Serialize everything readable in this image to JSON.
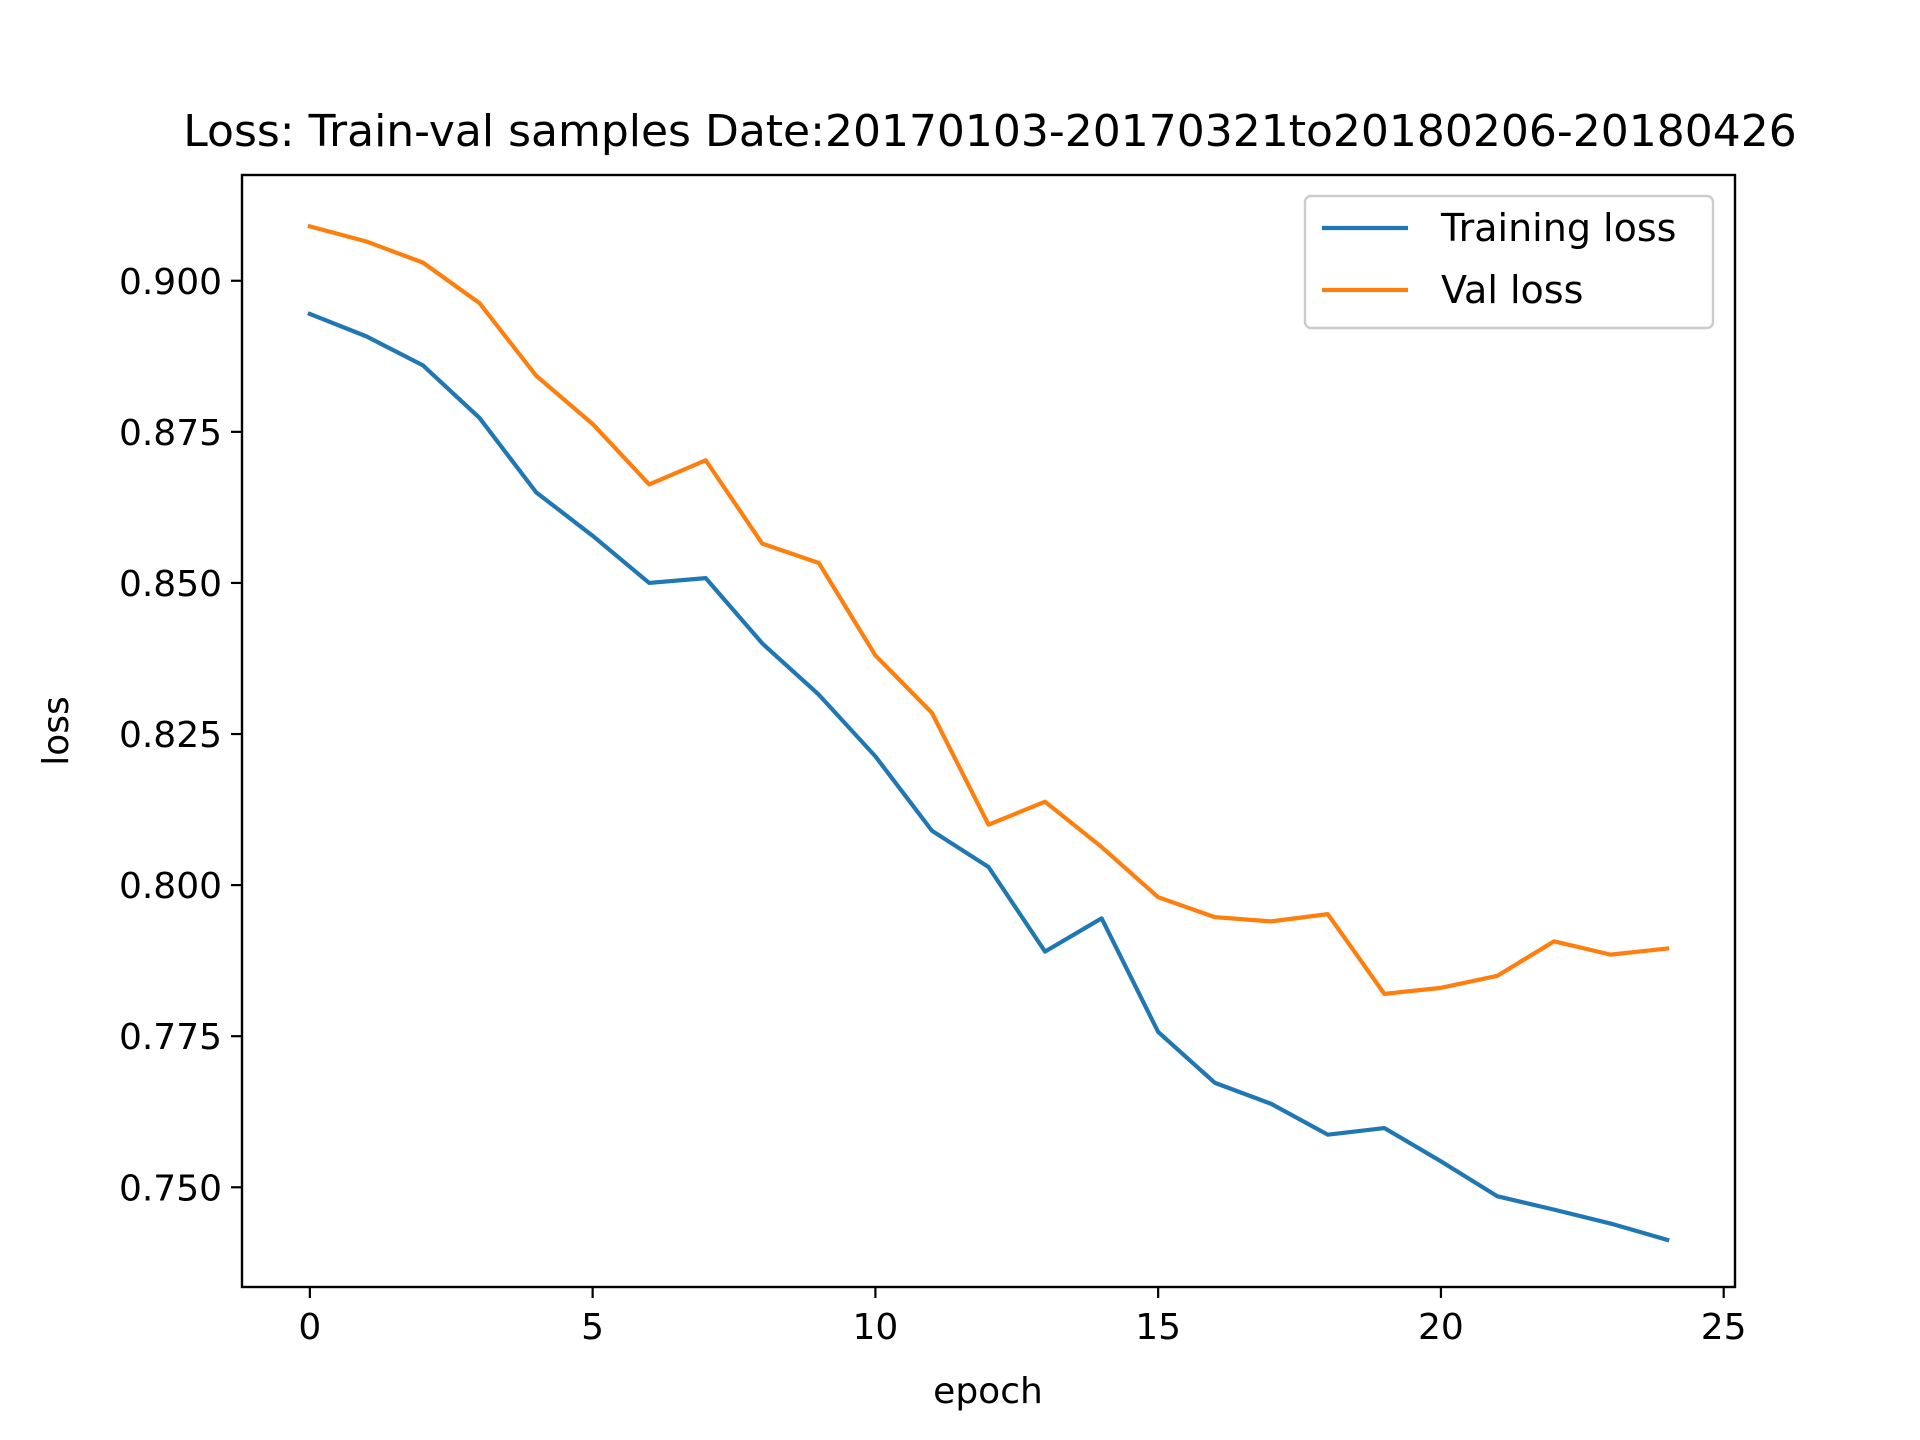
{
  "chart_data": {
    "type": "line",
    "title": "Loss: Train-val samples Date:20170103-20170321to20180206-20180426",
    "xlabel": "epoch",
    "ylabel": "loss",
    "xlim": [
      -1.2,
      25.2
    ],
    "ylim": [
      0.7335,
      0.9175
    ],
    "x_ticks": [
      0,
      5,
      10,
      15,
      20,
      25
    ],
    "x_tick_labels": [
      "0",
      "5",
      "10",
      "15",
      "20",
      "25"
    ],
    "y_ticks": [
      0.75,
      0.775,
      0.8,
      0.825,
      0.85,
      0.875,
      0.9
    ],
    "y_tick_labels": [
      "0.750",
      "0.775",
      "0.800",
      "0.825",
      "0.850",
      "0.875",
      "0.900"
    ],
    "grid": false,
    "legend_position": "top-right",
    "x": [
      0,
      1,
      2,
      3,
      4,
      5,
      6,
      7,
      8,
      9,
      10,
      11,
      12,
      13,
      14,
      15,
      16,
      17,
      18,
      19,
      20,
      21,
      22,
      23,
      24
    ],
    "series": [
      {
        "name": "Training loss",
        "color": "#1f77b4",
        "values": [
          0.8945,
          0.8908,
          0.886,
          0.8773,
          0.865,
          0.8578,
          0.85,
          0.8508,
          0.84,
          0.8315,
          0.8213,
          0.809,
          0.803,
          0.789,
          0.7945,
          0.7757,
          0.7673,
          0.7638,
          0.7587,
          0.7598,
          0.7543,
          0.7485,
          0.7463,
          0.744,
          0.7413
        ]
      },
      {
        "name": "Val loss",
        "color": "#ff7f0e",
        "values": [
          0.909,
          0.9065,
          0.903,
          0.8963,
          0.8843,
          0.8763,
          0.8663,
          0.8703,
          0.8565,
          0.8533,
          0.838,
          0.8285,
          0.81,
          0.8138,
          0.8063,
          0.798,
          0.7947,
          0.794,
          0.7952,
          0.782,
          0.783,
          0.785,
          0.7907,
          0.7885,
          0.7895
        ]
      }
    ]
  }
}
